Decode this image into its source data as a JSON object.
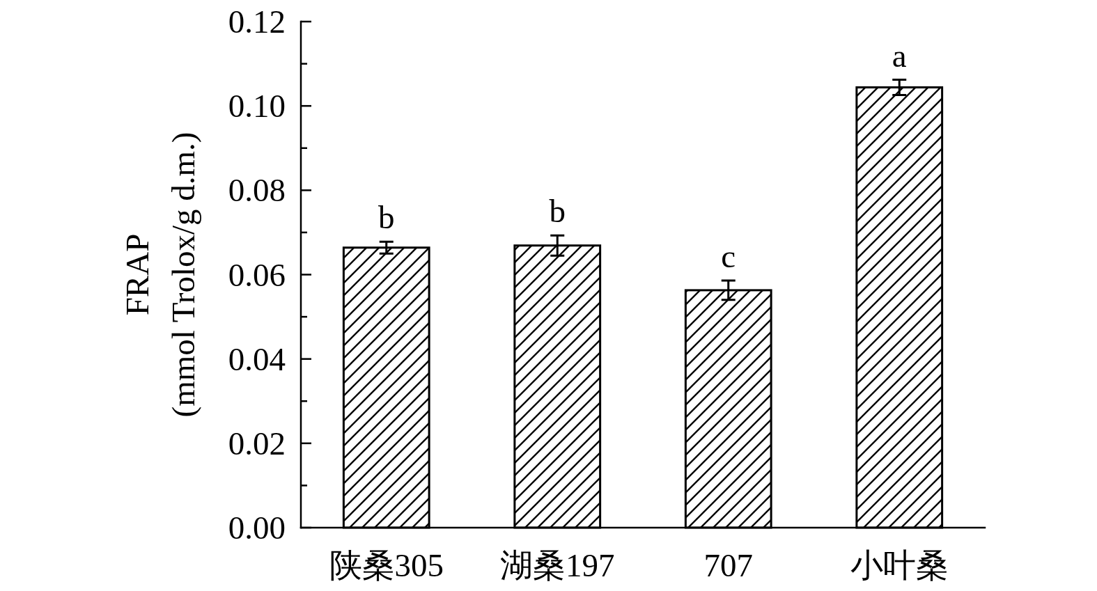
{
  "chart_data": {
    "type": "bar",
    "ylabel": "FRAP\n(mmol Trolox/g d.m.)",
    "categories": [
      "陕桑305",
      "湖桑197",
      "707",
      "小叶桑"
    ],
    "values": [
      0.0664,
      0.0669,
      0.0563,
      0.1044
    ],
    "errors": [
      0.0014,
      0.0024,
      0.0023,
      0.0018
    ],
    "color": "#000000",
    "ylim": [
      0,
      0.12
    ],
    "yticks": [
      {
        "value": 0,
        "label": "0.00"
      },
      {
        "value": 0.01,
        "label": null
      },
      {
        "value": 0.02,
        "label": "0.02"
      },
      {
        "value": 0.03,
        "label": null
      },
      {
        "value": 0.04,
        "label": "0.04"
      },
      {
        "value": 0.05,
        "label": null
      },
      {
        "value": 0.06,
        "label": "0.06"
      },
      {
        "value": 0.07,
        "label": null
      },
      {
        "value": 0.08,
        "label": "0.08"
      },
      {
        "value": 0.09,
        "label": null
      },
      {
        "value": 0.1,
        "label": "0.10"
      },
      {
        "value": 0.11,
        "label": null
      },
      {
        "value": 0.12,
        "label": "0.12"
      }
    ],
    "annotations": [
      "b",
      "b",
      "c",
      "a"
    ]
  }
}
